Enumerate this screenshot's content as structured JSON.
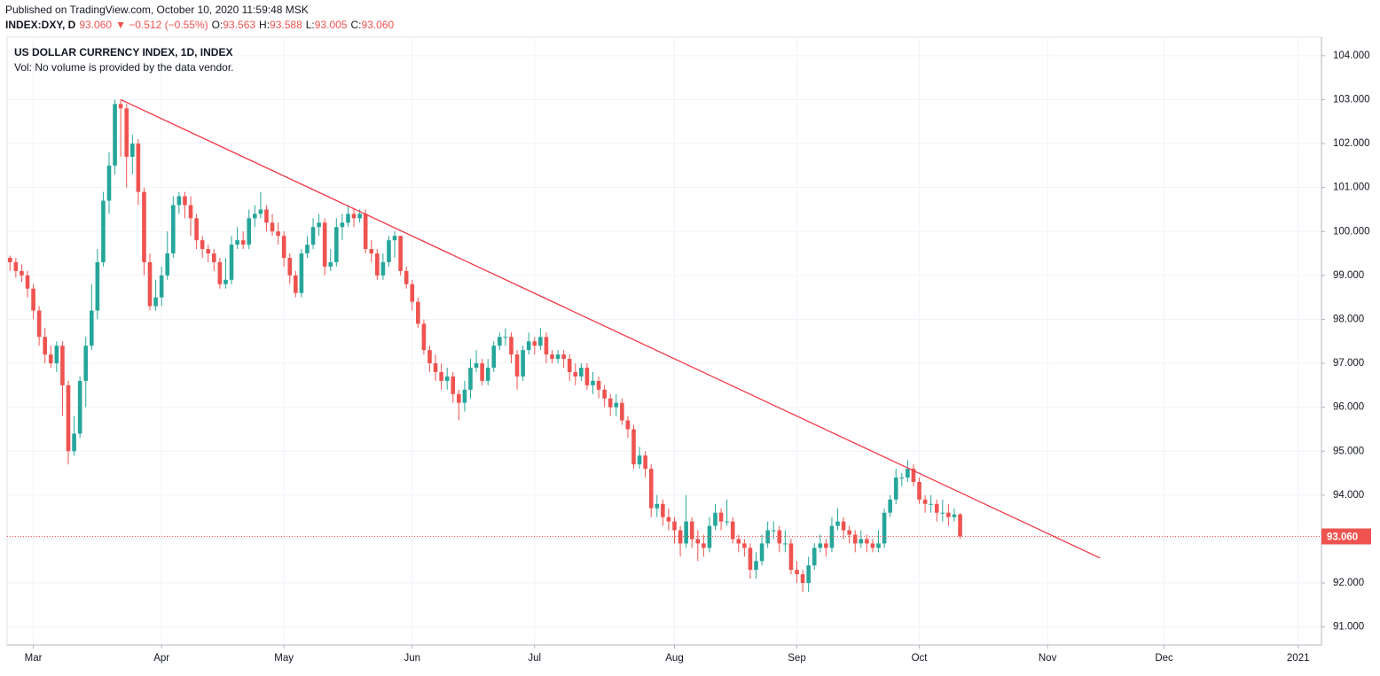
{
  "header": {
    "published": "Published on TradingView.com, October 10, 2020 11:59:48 MSK",
    "symbol": "INDEX:DXY, D",
    "last": "93.060",
    "change": "▼ −0.512 (−0.55%)",
    "ohlc": [
      {
        "key": "O:",
        "value": "93.563"
      },
      {
        "key": "H:",
        "value": "93.588"
      },
      {
        "key": "L:",
        "value": "93.005"
      },
      {
        "key": "C:",
        "value": "93.060"
      }
    ]
  },
  "chart_data": {
    "type": "candlestick",
    "title": "US DOLLAR CURRENCY INDEX, 1D, INDEX",
    "subtitle": "Vol: No volume is provided by the data vendor.",
    "up_color": "#26a69a",
    "down_color": "#ef5350",
    "grid": true,
    "open": [
      99.4,
      99.3,
      99.1,
      99.0,
      98.7,
      98.2,
      97.6,
      97.2,
      97.0,
      97.4,
      96.5,
      95.0,
      95.4,
      96.6,
      97.4,
      98.2,
      99.3,
      100.7,
      101.5,
      102.9,
      102.8,
      101.7,
      102.0,
      100.9,
      99.3,
      98.3,
      98.5,
      99.0,
      99.5,
      100.6,
      100.8,
      100.6,
      100.3,
      99.8,
      99.6,
      99.5,
      99.3,
      98.8,
      98.9,
      99.7,
      99.8,
      99.7,
      100.3,
      100.4,
      100.5,
      100.2,
      100.0,
      99.9,
      99.4,
      99.0,
      98.6,
      99.5,
      99.7,
      100.1,
      100.2,
      99.2,
      99.3,
      100.1,
      100.2,
      100.4,
      100.3,
      100.4,
      99.6,
      99.5,
      99.0,
      99.3,
      99.8,
      99.9,
      99.1,
      98.8,
      98.4,
      97.9,
      97.3,
      97.0,
      96.8,
      96.6,
      96.7,
      96.3,
      96.1,
      96.4,
      96.9,
      97.0,
      96.6,
      96.9,
      97.4,
      97.6,
      97.6,
      97.2,
      96.7,
      97.3,
      97.5,
      97.4,
      97.6,
      97.2,
      97.1,
      97.2,
      97.1,
      96.8,
      96.7,
      96.9,
      96.5,
      96.6,
      96.4,
      96.2,
      96.0,
      96.1,
      95.7,
      95.5,
      94.7,
      94.9,
      94.6,
      93.7,
      93.8,
      93.5,
      93.4,
      93.2,
      92.9,
      93.4,
      93.0,
      92.9,
      92.8,
      93.3,
      93.6,
      93.4,
      93.4,
      93.0,
      92.9,
      92.8,
      92.3,
      92.5,
      92.9,
      93.2,
      93.2,
      92.9,
      92.9,
      92.3,
      92.2,
      92.0,
      92.4,
      92.8,
      92.9,
      92.8,
      93.3,
      93.4,
      93.2,
      93.1,
      92.9,
      93.0,
      92.9,
      92.8,
      92.9,
      93.6,
      93.9,
      94.4,
      94.4,
      94.6,
      94.3,
      93.9,
      93.8,
      93.8,
      93.6,
      93.6,
      93.5,
      93.563
    ],
    "high": [
      99.45,
      99.4,
      99.25,
      99.1,
      98.8,
      98.3,
      97.8,
      97.4,
      97.5,
      97.5,
      96.6,
      95.8,
      96.7,
      97.6,
      98.8,
      99.6,
      100.9,
      101.8,
      103.0,
      103.0,
      102.9,
      102.2,
      102.1,
      101.0,
      99.5,
      98.9,
      99.2,
      100.0,
      100.8,
      100.9,
      100.9,
      100.8,
      100.4,
      99.9,
      99.7,
      99.6,
      99.4,
      99.4,
      99.9,
      100.1,
      100.0,
      100.5,
      100.6,
      100.9,
      100.6,
      100.4,
      100.2,
      100.0,
      99.5,
      99.1,
      99.6,
      99.9,
      100.3,
      100.4,
      100.3,
      99.6,
      100.3,
      100.4,
      100.6,
      100.5,
      100.5,
      100.5,
      99.8,
      99.6,
      99.5,
      99.9,
      100.0,
      99.9,
      99.2,
      98.9,
      98.5,
      98.0,
      97.4,
      97.2,
      97.0,
      96.9,
      96.8,
      96.4,
      96.6,
      97.1,
      97.3,
      97.1,
      97.1,
      97.5,
      97.7,
      97.8,
      97.7,
      97.3,
      97.4,
      97.7,
      97.6,
      97.8,
      97.7,
      97.3,
      97.3,
      97.3,
      97.2,
      97.0,
      97.0,
      97.0,
      96.8,
      96.7,
      96.5,
      96.3,
      96.3,
      96.2,
      95.8,
      95.6,
      95.1,
      95.0,
      94.7,
      94.0,
      93.9,
      93.7,
      93.5,
      93.3,
      94.0,
      93.5,
      93.2,
      93.1,
      93.5,
      93.8,
      93.7,
      93.9,
      93.5,
      93.1,
      93.0,
      92.9,
      92.7,
      93.1,
      93.4,
      93.4,
      93.3,
      93.2,
      93.0,
      92.5,
      92.3,
      92.6,
      92.9,
      93.1,
      93.0,
      93.5,
      93.7,
      93.5,
      93.3,
      93.2,
      93.2,
      93.1,
      93.0,
      93.2,
      93.7,
      94.0,
      94.6,
      94.5,
      94.8,
      94.7,
      94.4,
      94.0,
      94.0,
      93.9,
      93.9,
      93.8,
      93.7,
      93.588
    ],
    "low": [
      99.1,
      98.95,
      98.85,
      98.5,
      98.0,
      97.4,
      97.0,
      96.9,
      96.8,
      95.8,
      94.7,
      94.9,
      95.3,
      96.0,
      97.3,
      98.0,
      99.2,
      100.4,
      101.3,
      101.7,
      101.0,
      101.3,
      100.6,
      99.0,
      98.2,
      98.2,
      98.3,
      98.9,
      99.4,
      100.4,
      100.3,
      99.9,
      99.6,
      99.4,
      99.3,
      99.1,
      98.7,
      98.7,
      98.8,
      99.6,
      99.6,
      99.6,
      100.1,
      100.3,
      100.0,
      99.9,
      99.7,
      99.2,
      98.8,
      98.5,
      98.5,
      99.4,
      99.6,
      99.9,
      99.0,
      99.1,
      99.2,
      99.8,
      100.1,
      100.1,
      100.2,
      99.5,
      99.3,
      98.9,
      98.9,
      99.2,
      99.4,
      99.0,
      98.7,
      98.2,
      97.8,
      97.2,
      96.8,
      96.6,
      96.4,
      96.4,
      96.1,
      95.7,
      95.9,
      96.2,
      96.8,
      96.5,
      96.5,
      96.8,
      97.3,
      97.4,
      97.0,
      96.4,
      96.6,
      97.2,
      97.2,
      97.3,
      97.0,
      97.0,
      97.0,
      96.9,
      96.6,
      96.5,
      96.6,
      96.4,
      96.3,
      96.2,
      96.0,
      95.8,
      95.8,
      95.6,
      95.3,
      94.6,
      94.6,
      94.4,
      93.5,
      93.5,
      93.3,
      93.2,
      92.9,
      92.6,
      92.8,
      92.8,
      92.5,
      92.6,
      92.7,
      93.2,
      93.2,
      93.3,
      92.9,
      92.7,
      92.6,
      92.1,
      92.1,
      92.4,
      92.8,
      93.0,
      92.7,
      92.7,
      92.2,
      92.0,
      91.8,
      91.8,
      92.3,
      92.7,
      92.6,
      92.7,
      93.2,
      93.0,
      92.9,
      92.7,
      92.8,
      92.7,
      92.7,
      92.7,
      92.8,
      93.5,
      93.8,
      94.2,
      94.3,
      94.2,
      93.8,
      93.6,
      93.6,
      93.4,
      93.4,
      93.3,
      93.4,
      93.005
    ],
    "close": [
      99.3,
      99.1,
      99.0,
      98.7,
      98.2,
      97.6,
      97.2,
      97.0,
      97.4,
      96.5,
      95.0,
      95.4,
      96.6,
      97.4,
      98.2,
      99.3,
      100.7,
      101.5,
      102.9,
      102.8,
      101.7,
      102.0,
      100.9,
      99.3,
      98.3,
      98.5,
      99.0,
      99.5,
      100.6,
      100.8,
      100.6,
      100.3,
      99.8,
      99.6,
      99.5,
      99.3,
      98.8,
      98.9,
      99.7,
      99.8,
      99.7,
      100.3,
      100.4,
      100.5,
      100.2,
      100.0,
      99.9,
      99.4,
      99.0,
      98.6,
      99.5,
      99.7,
      100.1,
      100.2,
      99.2,
      99.3,
      100.1,
      100.2,
      100.4,
      100.3,
      100.4,
      99.6,
      99.5,
      99.0,
      99.3,
      99.8,
      99.9,
      99.1,
      98.8,
      98.4,
      97.9,
      97.3,
      97.0,
      96.8,
      96.6,
      96.7,
      96.3,
      96.1,
      96.4,
      96.9,
      97.0,
      96.6,
      96.9,
      97.4,
      97.6,
      97.6,
      97.2,
      96.7,
      97.3,
      97.5,
      97.4,
      97.6,
      97.2,
      97.1,
      97.2,
      97.1,
      96.8,
      96.7,
      96.9,
      96.5,
      96.6,
      96.4,
      96.2,
      96.0,
      96.1,
      95.7,
      95.5,
      94.7,
      94.9,
      94.6,
      93.7,
      93.8,
      93.5,
      93.4,
      93.2,
      92.9,
      93.4,
      93.0,
      92.9,
      92.8,
      93.3,
      93.6,
      93.4,
      93.4,
      93.0,
      92.9,
      92.8,
      92.3,
      92.5,
      92.9,
      93.2,
      93.2,
      92.9,
      92.9,
      92.3,
      92.2,
      92.0,
      92.4,
      92.8,
      92.9,
      92.8,
      93.3,
      93.4,
      93.2,
      93.1,
      92.9,
      93.0,
      92.9,
      92.8,
      92.9,
      93.6,
      93.9,
      94.4,
      94.4,
      94.6,
      94.3,
      93.9,
      93.8,
      93.8,
      93.6,
      93.6,
      93.5,
      93.56,
      93.06
    ],
    "price_label": "93.060",
    "price_color": "#ef5350",
    "trendline": {
      "x": [
        19,
        187
      ],
      "y": [
        103.0,
        92.57
      ],
      "color": "#f23645"
    },
    "xlim": [
      -0.5,
      225
    ],
    "xticks": [
      {
        "value": 4,
        "label": "Mar"
      },
      {
        "value": 26,
        "label": "Apr"
      },
      {
        "value": 47,
        "label": "May"
      },
      {
        "value": 69,
        "label": "Jun"
      },
      {
        "value": 90,
        "label": "Jul"
      },
      {
        "value": 114,
        "label": "Aug"
      },
      {
        "value": 135,
        "label": "Sep"
      },
      {
        "value": 156,
        "label": "Oct"
      },
      {
        "value": 178,
        "label": "Nov"
      },
      {
        "value": 198,
        "label": "Dec"
      },
      {
        "value": 221,
        "label": "2021"
      }
    ],
    "ylim": [
      90.59,
      104.42
    ],
    "yticks": [
      {
        "value": 91,
        "label": "91.000"
      },
      {
        "value": 92,
        "label": "92.000"
      },
      {
        "value": 93,
        "label": "93.000"
      },
      {
        "value": 94,
        "label": "94.000"
      },
      {
        "value": 95,
        "label": "95.000"
      },
      {
        "value": 96,
        "label": "96.000"
      },
      {
        "value": 97,
        "label": "97.000"
      },
      {
        "value": 98,
        "label": "98.000"
      },
      {
        "value": 99,
        "label": "99.000"
      },
      {
        "value": 100,
        "label": "100.000"
      },
      {
        "value": 101,
        "label": "101.000"
      },
      {
        "value": 102,
        "label": "102.000"
      },
      {
        "value": 103,
        "label": "103.000"
      },
      {
        "value": 104,
        "label": "104.000"
      }
    ]
  }
}
